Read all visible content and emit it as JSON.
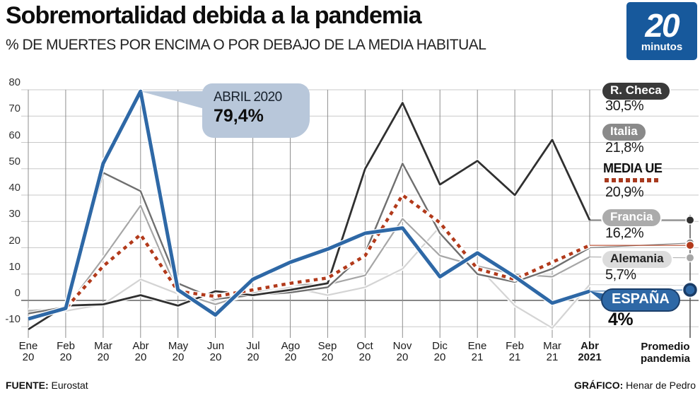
{
  "header": {
    "title": "Sobremortalidad debida a la pandemia",
    "subtitle": "% DE MUERTES POR ENCIMA O POR DEBAJO DE LA MEDIA HABITUAL",
    "logo": {
      "big": "20",
      "small": "minutos",
      "color": "#17599c"
    }
  },
  "chart_data": {
    "type": "line",
    "title": "Sobremortalidad debida a la pandemia",
    "ylabel": "% de muertes por encima o por debajo de la media habitual",
    "y_ticks": [
      80,
      70,
      60,
      50,
      40,
      30,
      20,
      10,
      0,
      -10
    ],
    "y_axis": {
      "min": -10,
      "max": 80,
      "step": 10,
      "grid": true
    },
    "categories": [
      "Ene 20",
      "Feb 20",
      "Mar 20",
      "Abr 20",
      "May 20",
      "Jun 20",
      "Jul 20",
      "Ago 20",
      "Sep 20",
      "Oct 20",
      "Nov 20",
      "Dic 20",
      "Ene 21",
      "Feb 21",
      "Mar 21",
      "Abr 2021"
    ],
    "series": [
      {
        "name": "Alemania",
        "color": "#d4d4d4",
        "width": 2.2,
        "values": [
          -3.5,
          -4,
          -1.5,
          8,
          2.5,
          -1,
          2,
          5,
          2,
          5,
          12,
          28,
          13,
          -2,
          -10.5,
          6
        ]
      },
      {
        "name": "Francia",
        "color": "#a6a6a6",
        "width": 2.2,
        "values": [
          -4,
          -3,
          16,
          36,
          3,
          -1.5,
          3,
          6,
          6,
          9.5,
          31,
          17,
          13,
          10,
          9,
          16.5
        ]
      },
      {
        "name": "Italia",
        "color": "#6f6f6f",
        "width": 2.4,
        "values": [
          -5,
          -2.5,
          48.5,
          41.5,
          6.5,
          0.5,
          2,
          3,
          5,
          18,
          52,
          25.5,
          10,
          7,
          12,
          20
        ]
      },
      {
        "name": "R. Checa",
        "color": "#303030",
        "width": 2.8,
        "values": [
          -11,
          -2,
          -1.5,
          2,
          -2,
          3.5,
          2,
          4,
          6.5,
          50,
          75,
          44,
          53,
          40,
          61,
          30.5
        ]
      },
      {
        "name": "MEDIA UE",
        "color": "#b23a1b",
        "width": 4.5,
        "dash": "5.5 6",
        "values": [
          -7,
          -3,
          13,
          25,
          3.5,
          1.5,
          4,
          6.5,
          8.5,
          17,
          40,
          29.5,
          12,
          8,
          14.5,
          20.9
        ]
      },
      {
        "name": "España",
        "color": "#2e68a6",
        "width": 5,
        "values": [
          -7,
          -3,
          52,
          79.4,
          4,
          -5.5,
          8,
          14.5,
          19.5,
          25.5,
          27.5,
          9,
          18,
          9,
          -1,
          3.5
        ]
      }
    ],
    "legend_position": "right",
    "promedio_axis_label": {
      "line1": "Promedio",
      "line2": "pandemia"
    }
  },
  "legend": [
    {
      "label": "R. Checa",
      "value_label": "30,5%",
      "promedio": 30.5,
      "pill_bg": "#3a3a3a",
      "pill_color": "#ffffff",
      "dot_color": "#303030"
    },
    {
      "label": "Italia",
      "value_label": "21,8%",
      "promedio": 21.8,
      "pill_bg": "#8a8a8a",
      "pill_color": "#ffffff",
      "dot_color": "#6f6f6f"
    },
    {
      "label": "MEDIA UE",
      "value_label": "20,9%",
      "promedio": 20.9,
      "pill_bg": "none",
      "pill_color": "#111111",
      "dot_color": "#b23a1b"
    },
    {
      "label": "Francia",
      "value_label": "16,2%",
      "promedio": 16.2,
      "pill_bg": "#ababab",
      "pill_color": "#ffffff",
      "dot_color": "#a6a6a6"
    },
    {
      "label": "Alemania",
      "value_label": "5,7%",
      "promedio": 5.7,
      "pill_bg": "#dcdcdc",
      "pill_color": "#222222",
      "dot_color": "#d4d4d4"
    },
    {
      "label": "ESPAÑA",
      "value_label": "4%",
      "promedio": 4,
      "pill_bg": "#2e68a6",
      "pill_color": "#ffffff",
      "dot_color": "#2e68a6",
      "ring": true
    }
  ],
  "annotation": {
    "label": "ABRIL 2020",
    "value": "79,4%",
    "box_color": "#b8c7da"
  },
  "footer": {
    "fuente_label": "FUENTE:",
    "fuente_value": " Eurostat",
    "grafico_label": "GRÁFICO:",
    "grafico_value": " Henar de Pedro"
  }
}
